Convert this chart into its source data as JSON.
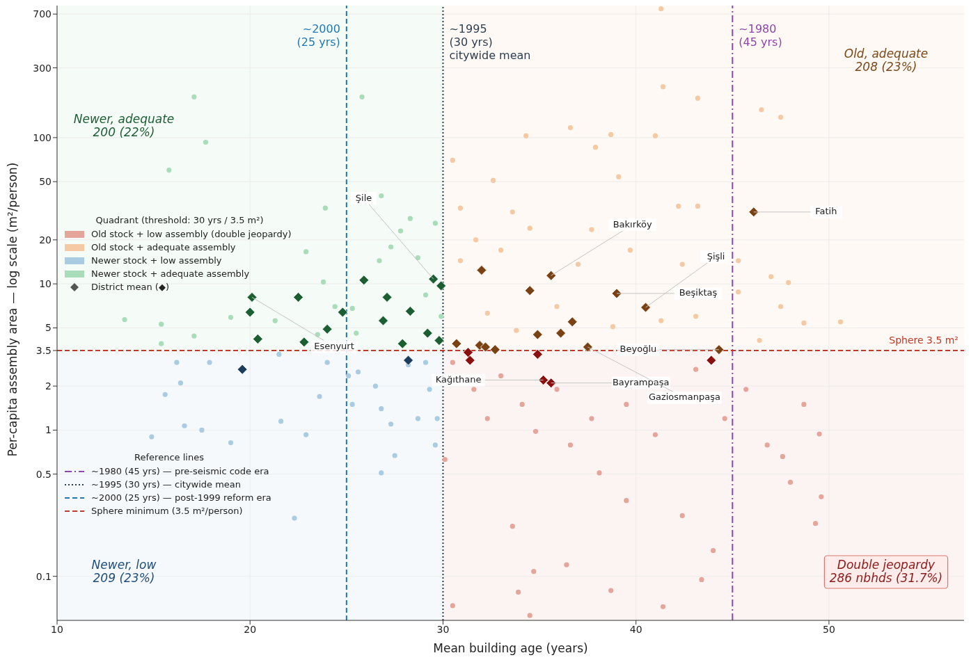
{
  "chart_data": {
    "type": "scatter",
    "xlabel": "Mean building age (years)",
    "ylabel": "Per-capita assembly area — log scale (m²/person)",
    "legend_title": "Quadrant  (threshold: 30 yrs / 3.5 m²)",
    "legend": "left",
    "grid": true,
    "log": "y",
    "xlim": [
      10,
      57
    ],
    "xticks": [
      10,
      20,
      30,
      40,
      50
    ],
    "ylim": [
      0.05,
      800
    ],
    "yticks": [
      0.1,
      0.5,
      1,
      2,
      3.5,
      5,
      10,
      20,
      50,
      100,
      300,
      700
    ],
    "series": [
      {
        "name": "Old stock + low assembly  (double jeopardy)",
        "color": "#e5a59b",
        "marker": "circle",
        "x": [
          30.1,
          30.5,
          31.6,
          32.3,
          33.0,
          34.1,
          34.8,
          35.9,
          36.6,
          37.7,
          39.5,
          41.0,
          43.1,
          44.6,
          45.7,
          46.8,
          48.0,
          48.7,
          49.3,
          49.6,
          49.5,
          47.6,
          38.1,
          39.5,
          33.6,
          36.4,
          33.9,
          38.7,
          41.4,
          43.4,
          34.7,
          44.0,
          30.5,
          42.4,
          34.5
        ],
        "values": [
          0.63,
          2.9,
          1.9,
          1.2,
          2.35,
          1.5,
          0.98,
          1.9,
          0.79,
          1.2,
          1.5,
          0.93,
          2.6,
          1.2,
          1.9,
          0.79,
          0.44,
          1.5,
          0.23,
          0.35,
          0.94,
          0.66,
          0.51,
          0.33,
          0.22,
          0.12,
          0.078,
          0.08,
          0.062,
          0.095,
          0.108,
          0.15,
          0.063,
          0.26,
          0.054
        ]
      },
      {
        "name": "Old stock + adequate assembly",
        "color": "#f5c9a3",
        "marker": "circle",
        "x": [
          41.4,
          43.2,
          47.5,
          46.5,
          41.0,
          34.3,
          36.6,
          38.7,
          37.9,
          39.1,
          32.6,
          33.6,
          42.2,
          43.2,
          31.7,
          30.5,
          34.5,
          37.7,
          39.7,
          33.0,
          30.9,
          37.0,
          42.4,
          45.3,
          47.0,
          47.9,
          47.5,
          48.7,
          50.6,
          41.3,
          32.3,
          35.9,
          43.1,
          45.3,
          46.4,
          33.8,
          38.8,
          30.9,
          41.3
        ],
        "values": [
          223,
          186,
          138,
          155,
          103,
          103,
          117,
          105,
          86,
          54,
          51,
          31,
          34,
          34,
          20,
          70,
          24,
          23.5,
          17,
          17,
          14.4,
          13.6,
          13.6,
          14.4,
          11.2,
          10.2,
          7.0,
          5.4,
          5.5,
          5.6,
          6.3,
          7.0,
          6.0,
          8.8,
          4.1,
          4.8,
          5.1,
          33,
          760
        ]
      },
      {
        "name": "Newer stock + low assembly",
        "color": "#a9cce3",
        "marker": "circle",
        "x": [
          16.2,
          16.4,
          15.6,
          16.6,
          17.5,
          14.9,
          19.0,
          21.6,
          22.9,
          23.6,
          25.1,
          25.3,
          26.5,
          26.8,
          27.3,
          28.7,
          29.3,
          29.6,
          26.8,
          27.5,
          22.3,
          17.9,
          21.5,
          24.0,
          28.2,
          25.6,
          29.1,
          29.7
        ],
        "values": [
          2.9,
          2.1,
          1.75,
          1.07,
          1.0,
          0.9,
          0.82,
          1.15,
          0.93,
          1.7,
          2.35,
          1.5,
          2.0,
          1.4,
          1.1,
          1.2,
          1.9,
          0.79,
          0.51,
          0.67,
          0.25,
          2.9,
          3.3,
          2.9,
          2.8,
          2.5,
          2.9,
          1.2
        ]
      },
      {
        "name": "Newer stock + adequate assembly",
        "color": "#a9dcb9",
        "marker": "circle",
        "x": [
          17.1,
          25.8,
          17.7,
          15.8,
          26.8,
          23.9,
          28.3,
          13.5,
          15.4,
          15.4,
          19.0,
          23.8,
          24.4,
          25.3,
          26.7,
          27.3,
          27.8,
          28.7,
          29.1,
          29.6,
          23.5,
          25.5,
          21.3,
          17.1,
          29.9,
          22.9
        ],
        "values": [
          190,
          190,
          93,
          60,
          40,
          33,
          28,
          5.7,
          5.3,
          3.9,
          5.9,
          10.3,
          7.0,
          6.8,
          14.4,
          17.9,
          23,
          15.1,
          8.4,
          26,
          4.5,
          4.6,
          5.6,
          4.4,
          6.0,
          16.6
        ]
      },
      {
        "marker": "diamond",
        "x": [
          20.1,
          20.0,
          20.4,
          22.5,
          22.8,
          24.0,
          24.8,
          25.9,
          27.1,
          26.9,
          28.3,
          27.9,
          29.2,
          29.5,
          29.9,
          29.8,
          19.6,
          28.2,
          30.7,
          32.0,
          31.9,
          32.2,
          32.7,
          34.5,
          34.9,
          35.6,
          36.1,
          36.7,
          37.5,
          39.0,
          40.5,
          44.3,
          46.1,
          31.3,
          31.4,
          34.9,
          35.2,
          35.6,
          43.9
        ],
        "values": [
          8.1,
          6.4,
          4.2,
          8.1,
          4.0,
          4.9,
          6.4,
          10.6,
          8.1,
          5.6,
          6.5,
          3.9,
          4.6,
          10.8,
          9.7,
          4.1,
          2.6,
          3.0,
          3.9,
          12.4,
          3.8,
          3.7,
          3.55,
          9.0,
          4.5,
          11.4,
          4.6,
          5.5,
          3.7,
          8.6,
          6.9,
          3.55,
          31,
          3.4,
          3.0,
          3.3,
          2.2,
          2.1,
          3.0
        ],
        "colors": [
          "#1a5e32",
          "#1a5e32",
          "#1a5e32",
          "#1a5e32",
          "#1a5e32",
          "#1a5e32",
          "#1a5e32",
          "#1a5e32",
          "#1a5e32",
          "#1a5e32",
          "#1a5e32",
          "#1a5e32",
          "#1a5e32",
          "#1a5e32",
          "#1a5e32",
          "#1a5e32",
          "#1b3d5c",
          "#1b3d5c",
          "#7a4213",
          "#7a4213",
          "#7a4213",
          "#7a4213",
          "#7a4213",
          "#7a4213",
          "#7a4213",
          "#7a4213",
          "#7a4213",
          "#7a4213",
          "#7a4213",
          "#7a4213",
          "#7a4213",
          "#7a4213",
          "#7a4213",
          "#8b0f0f",
          "#8b0f0f",
          "#8b0f0f",
          "#8b0f0f",
          "#8b0f0f",
          "#8b0f0f"
        ]
      }
    ],
    "ref_lines": [
      {
        "axis": "x",
        "value": 45,
        "label": "~1980\n(45 yrs)",
        "color": "#8e44ad",
        "line_style": "dashdot"
      },
      {
        "axis": "x",
        "value": 30,
        "label": "~1995\n(30 yrs)\ncitywide mean",
        "color": "#2c3e50",
        "line_style": "dotted"
      },
      {
        "axis": "x",
        "value": 25,
        "label": "~2000\n(25 yrs)",
        "color": "#1f77b4",
        "line_style": "dashed"
      },
      {
        "axis": "y",
        "value": 3.5,
        "label": "Sphere 3.5 m²",
        "color": "#c0392b",
        "line_style": "dashed"
      }
    ],
    "annotations": [
      "Newer, adequate\n200 (22%)",
      "Old, adequate\n208 (23%)",
      "Newer, low\n209 (23%)",
      "Double jeopardy\n286 nbhds (31.7%)",
      "Reference lines",
      "~1980 (45 yrs) — pre-seismic code era",
      "~1995 (30 yrs) — citywide mean",
      "~2000 (25 yrs) — post-1999 reform era",
      "Sphere minimum (3.5 m²/person)",
      "District mean (◆)",
      {
        "text": "Şile",
        "x": 29.5,
        "y": 10.8
      },
      {
        "text": "Esenyurt",
        "x": 20.1,
        "y": 8.1
      },
      {
        "text": "Bakırköy",
        "x": 35.6,
        "y": 11.4
      },
      {
        "text": "Şişli",
        "x": 40.5,
        "y": 6.9
      },
      {
        "text": "Beşiktaş",
        "x": 39.0,
        "y": 8.6
      },
      {
        "text": "Fatih",
        "x": 46.1,
        "y": 31
      },
      {
        "text": "Beyoğlu",
        "x": 44.3,
        "y": 3.55
      },
      {
        "text": "Kağıthane",
        "x": 35.2,
        "y": 2.2
      },
      {
        "text": "Bayrampaşa",
        "x": 35.6,
        "y": 2.1
      },
      {
        "text": "Gaziosmanpaşa",
        "x": 37.5,
        "y": 3.7
      }
    ]
  }
}
